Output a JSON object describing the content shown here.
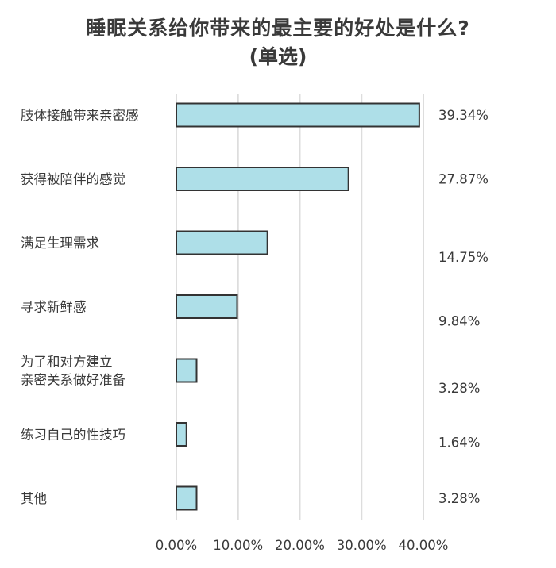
{
  "chart_data": {
    "type": "bar",
    "orientation": "horizontal",
    "title": "睡眠关系给你带来的最主要的好处是什么?",
    "subtitle": "(单选)",
    "categories": [
      [
        "肢体接触带来亲密感"
      ],
      [
        "获得被陪伴的感觉"
      ],
      [
        "满足生理需求"
      ],
      [
        "寻求新鲜感"
      ],
      [
        "为了和对方建立",
        "亲密关系做好准备"
      ],
      [
        "练习自己的性技巧"
      ],
      [
        "其他"
      ]
    ],
    "values": [
      39.34,
      27.87,
      14.75,
      9.84,
      3.28,
      1.64,
      3.28
    ],
    "value_labels": [
      "39.34%",
      "27.87%",
      "14.75%",
      "9.84%",
      "3.28%",
      "1.64%",
      "3.28%"
    ],
    "x_ticks": [
      "0.00%",
      "10.00%",
      "20.00%",
      "30.00%",
      "40.00%"
    ],
    "xlim": [
      0,
      40
    ],
    "grid": true,
    "bar_color": "#aedfe8",
    "bar_edge_color": "#333333",
    "grid_color": "#dddddd"
  }
}
